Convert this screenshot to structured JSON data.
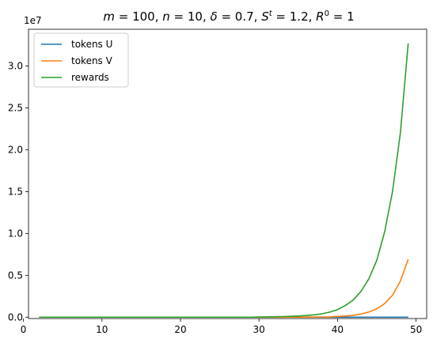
{
  "chart_data": {
    "type": "line",
    "title_parts": {
      "m_sym": "m",
      "m_val": " = 100, ",
      "n_sym": "n",
      "n_val": " = 10, ",
      "delta_sym": "δ",
      "delta_val": " = 0.7, ",
      "s_sym": "S",
      "s_sup": "t",
      "s_val": " = 1.2, ",
      "r_sym": "R",
      "r_sup": "0",
      "r_val": " = 1"
    },
    "y_offset_label": "1e7",
    "xlim": [
      0.65,
      51.35
    ],
    "ylim": [
      -0.165,
      34.4
    ],
    "y_scale_note": "y values in units of 1e7",
    "x_ticks": [
      0,
      10,
      20,
      30,
      40,
      50
    ],
    "x_tick_labels": [
      "0",
      "10",
      "20",
      "30",
      "40",
      "50"
    ],
    "y_ticks": [
      0,
      0.5,
      1.0,
      1.5,
      2.0,
      2.5,
      3.0
    ],
    "y_tick_labels": [
      "0.0",
      "0.5",
      "1.0",
      "1.5",
      "2.0",
      "2.5",
      "3.0"
    ],
    "legend_position": "top-left",
    "x": [
      2,
      3,
      4,
      5,
      6,
      7,
      8,
      9,
      10,
      11,
      12,
      13,
      14,
      15,
      16,
      17,
      18,
      19,
      20,
      21,
      22,
      23,
      24,
      25,
      26,
      27,
      28,
      29,
      30,
      31,
      32,
      33,
      34,
      35,
      36,
      37,
      38,
      39,
      40,
      41,
      42,
      43,
      44,
      45,
      46,
      47,
      48,
      49
    ],
    "series": [
      {
        "name": "tokens U",
        "color": "#1f77b4",
        "values": [
          0,
          0,
          0,
          0,
          0,
          0,
          0,
          0,
          0,
          0,
          0,
          0,
          0,
          0,
          0,
          0,
          0,
          0,
          0,
          0,
          0,
          0,
          0,
          0,
          0,
          0,
          0,
          0,
          0,
          0,
          0,
          0,
          0,
          0,
          0,
          0,
          0,
          0,
          0,
          0,
          0,
          0,
          0,
          0,
          0,
          0,
          0,
          0
        ]
      },
      {
        "name": "tokens V",
        "color": "#ff7f0e",
        "values": [
          0,
          0,
          0,
          0,
          0,
          0,
          0,
          0,
          0,
          0,
          0,
          0,
          0,
          0,
          0,
          0,
          0,
          0,
          0,
          0,
          0,
          0,
          0,
          0,
          0,
          0,
          0,
          0,
          0.0004,
          0.0005,
          0.0006,
          0.0008,
          0.001,
          0.0012,
          0.0015,
          0.0019,
          0.0024,
          0.003,
          0.0095,
          0.014,
          0.023,
          0.038,
          0.062,
          0.1,
          0.162,
          0.262,
          0.43,
          0.69
        ]
      },
      {
        "name": "rewards",
        "color": "#2ca02c",
        "values": [
          0,
          0,
          0,
          0,
          0,
          0,
          0,
          0,
          0,
          0,
          0,
          0,
          0,
          0,
          0,
          0,
          0,
          0,
          0,
          0,
          0,
          0,
          0,
          0,
          0,
          0,
          0,
          0,
          0.002,
          0.003,
          0.005,
          0.007,
          0.01,
          0.014,
          0.02,
          0.028,
          0.04,
          0.06,
          0.09,
          0.14,
          0.205,
          0.31,
          0.46,
          0.68,
          1.02,
          1.5,
          2.2,
          3.27
        ]
      }
    ]
  }
}
